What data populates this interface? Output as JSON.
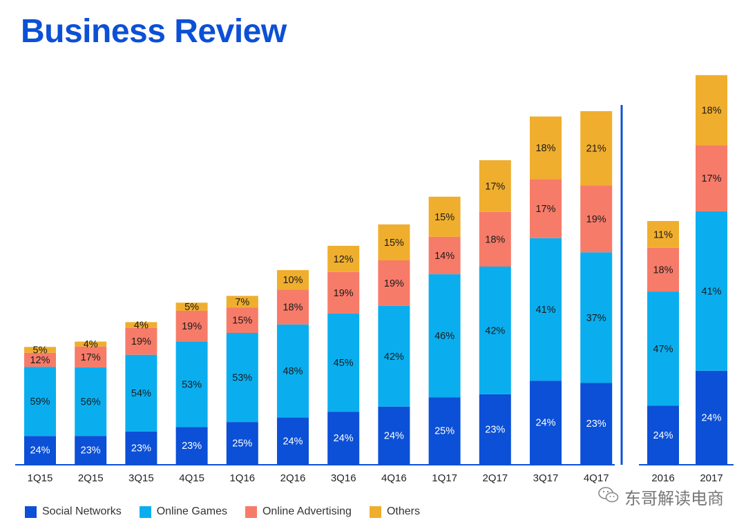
{
  "title": "Business Review",
  "watermark": "东哥解读电商",
  "colors": {
    "Social Networks": "#0b50d6",
    "Online Games": "#0aaeef",
    "Online Advertising": "#f77b69",
    "Others": "#f0ae2e",
    "axis": "#0b50d6"
  },
  "chart_data": {
    "type": "bar",
    "stacked": true,
    "units": "percent of quarterly/annual revenue; bar heights are relative",
    "groups": [
      {
        "name": "quarterly",
        "categories": [
          "1Q15",
          "2Q15",
          "3Q15",
          "4Q15",
          "1Q16",
          "2Q16",
          "3Q16",
          "4Q16",
          "1Q17",
          "2Q17",
          "3Q17",
          "4Q17"
        ],
        "relative_totals": [
          24.1,
          25.2,
          29.2,
          33.2,
          34.6,
          39.9,
          44.9,
          49.3,
          55.0,
          62.5,
          71.5,
          72.6
        ],
        "series": [
          {
            "name": "Social Networks",
            "values": [
              24,
              23,
              23,
              23,
              25,
              24,
              24,
              24,
              25,
              23,
              24,
              23
            ]
          },
          {
            "name": "Online Games",
            "values": [
              59,
              56,
              54,
              53,
              53,
              48,
              45,
              42,
              46,
              42,
              41,
              37
            ]
          },
          {
            "name": "Online Advertising",
            "values": [
              12,
              17,
              19,
              19,
              15,
              18,
              19,
              19,
              14,
              18,
              17,
              19
            ]
          },
          {
            "name": "Others",
            "values": [
              5,
              4,
              4,
              5,
              7,
              10,
              12,
              15,
              15,
              17,
              18,
              21
            ]
          }
        ]
      },
      {
        "name": "annual",
        "categories": [
          "2016",
          "2017"
        ],
        "relative_totals": [
          50.0,
          80.0
        ],
        "series": [
          {
            "name": "Social Networks",
            "values": [
              24,
              24
            ]
          },
          {
            "name": "Online Games",
            "values": [
              47,
              41
            ]
          },
          {
            "name": "Online Advertising",
            "values": [
              18,
              17
            ]
          },
          {
            "name": "Others",
            "values": [
              11,
              18
            ]
          }
        ]
      }
    ],
    "legend": [
      "Social Networks",
      "Online Games",
      "Online Advertising",
      "Others"
    ],
    "legend_position": "bottom-left"
  }
}
